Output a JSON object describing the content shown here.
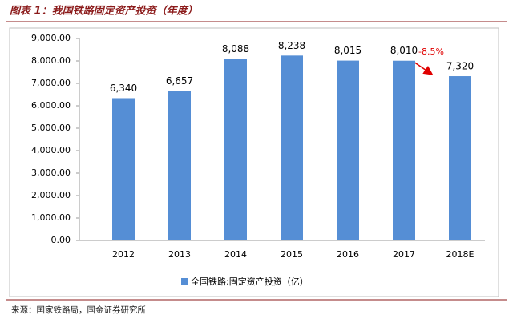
{
  "chart_data": {
    "type": "bar",
    "title": "图表 1：我国铁路固定资产投资（年度）",
    "source": "来源：国家铁路局，国金证券研究所",
    "categories": [
      "2012",
      "2013",
      "2014",
      "2015",
      "2016",
      "2017",
      "2018E"
    ],
    "series": [
      {
        "name": "全国铁路:固定资产投资（亿）",
        "color": "#558ed5",
        "values": [
          6340,
          6657,
          8088,
          8238,
          8015,
          8010,
          7320
        ],
        "value_labels": [
          "6,340",
          "6,657",
          "8,088",
          "8,238",
          "8,015",
          "8,010",
          "7,320"
        ]
      }
    ],
    "annotations": [
      {
        "text": "-8.5%",
        "color": "#e00000"
      }
    ],
    "ylim": [
      0,
      9000
    ],
    "yticks": [
      {
        "value": 0,
        "label": "0.00"
      },
      {
        "value": 1000,
        "label": "1,000.00"
      },
      {
        "value": 2000,
        "label": "2,000.00"
      },
      {
        "value": 3000,
        "label": "3,000.00"
      },
      {
        "value": 4000,
        "label": "4,000.00"
      },
      {
        "value": 5000,
        "label": "5,000.00"
      },
      {
        "value": 6000,
        "label": "6,000.00"
      },
      {
        "value": 7000,
        "label": "7,000.00"
      },
      {
        "value": 8000,
        "label": "8,000.00"
      },
      {
        "value": 9000,
        "label": "9,000.00"
      }
    ],
    "legend": "bottom"
  }
}
